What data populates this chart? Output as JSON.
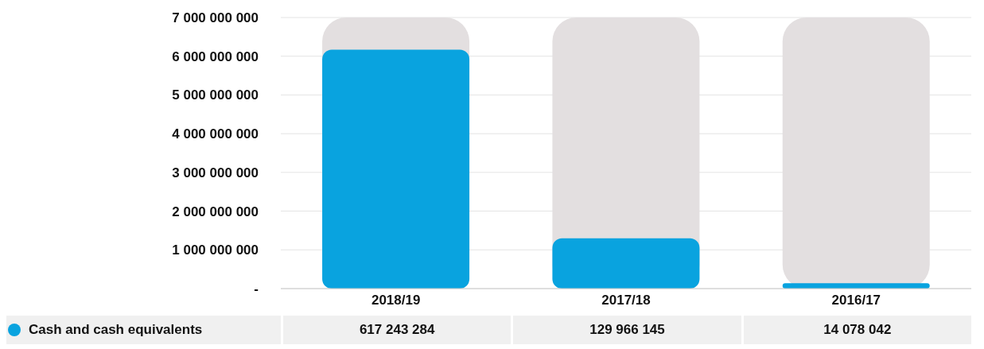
{
  "chart_data": {
    "type": "bar",
    "categories": [
      "2018/19",
      "2017/18",
      "2016/17"
    ],
    "series": [
      {
        "name": "Cash and cash equivalents",
        "color": "#09a3df",
        "values": [
          6170000000,
          1300000000,
          140000000
        ]
      }
    ],
    "annotations": [
      "617 243 284",
      "129 966 145",
      "14 078 042"
    ],
    "ylim": [
      0,
      7000000000
    ],
    "yticks": [
      {
        "value": 0,
        "label": "-"
      },
      {
        "value": 1000000000,
        "label": "1 000 000 000"
      },
      {
        "value": 2000000000,
        "label": "2 000 000 000"
      },
      {
        "value": 3000000000,
        "label": "3 000 000 000"
      },
      {
        "value": 4000000000,
        "label": "4 000 000 000"
      },
      {
        "value": 5000000000,
        "label": "5 000 000 000"
      },
      {
        "value": 6000000000,
        "label": "6 000 000 000"
      },
      {
        "value": 7000000000,
        "label": "7 000 000 000"
      }
    ],
    "grid": "y",
    "legend": "bottom"
  }
}
